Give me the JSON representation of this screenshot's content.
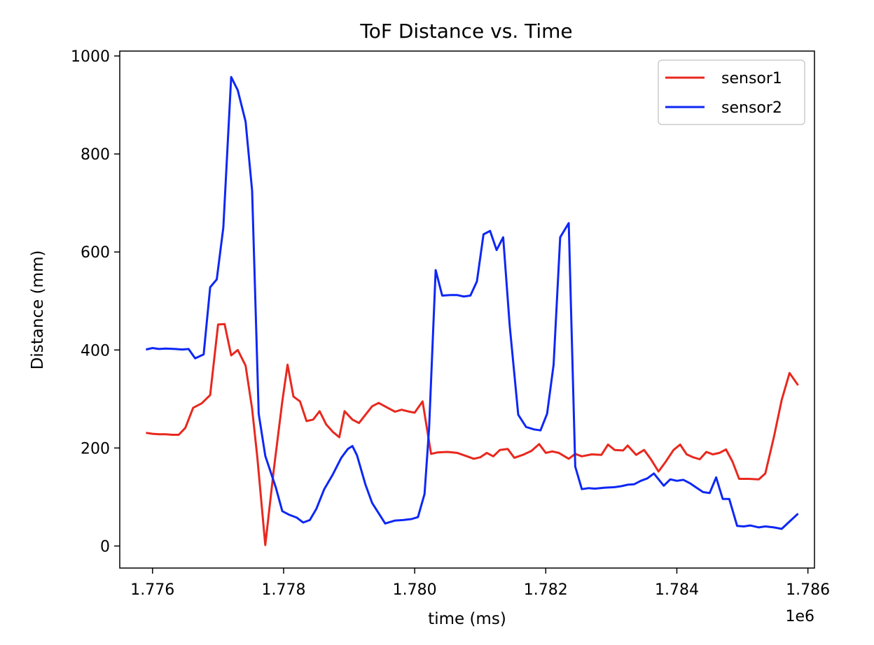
{
  "chart_data": {
    "type": "line",
    "title": "ToF Distance vs. Time",
    "xlabel": "time (ms)",
    "ylabel": "Distance (mm)",
    "x_offset_label": "1e6",
    "xlim": [
      1775.5,
      1786.1
    ],
    "ylim": [
      -45,
      1010
    ],
    "xticks": [
      1776,
      1778,
      1780,
      1782,
      1784,
      1786
    ],
    "xtick_labels": [
      "1.776",
      "1.778",
      "1.780",
      "1.782",
      "1.784",
      "1.786"
    ],
    "yticks": [
      0,
      200,
      400,
      600,
      800,
      1000
    ],
    "ytick_labels": [
      "0",
      "200",
      "400",
      "600",
      "800",
      "1000"
    ],
    "grid": false,
    "legend_position": "top-right",
    "series": [
      {
        "name": "sensor1",
        "color": "#e8281e",
        "points": [
          [
            1775.9,
            231
          ],
          [
            1776.0,
            229
          ],
          [
            1776.1,
            228
          ],
          [
            1776.2,
            228
          ],
          [
            1776.3,
            227
          ],
          [
            1776.4,
            227
          ],
          [
            1776.5,
            241
          ],
          [
            1776.62,
            282
          ],
          [
            1776.75,
            291
          ],
          [
            1776.88,
            308
          ],
          [
            1777.0,
            452
          ],
          [
            1777.1,
            453
          ],
          [
            1777.2,
            389
          ],
          [
            1777.3,
            400
          ],
          [
            1777.42,
            368
          ],
          [
            1777.52,
            280
          ],
          [
            1777.6,
            180
          ],
          [
            1777.72,
            2
          ],
          [
            1777.85,
            155
          ],
          [
            1777.98,
            295
          ],
          [
            1778.06,
            370
          ],
          [
            1778.15,
            305
          ],
          [
            1778.25,
            295
          ],
          [
            1778.35,
            255
          ],
          [
            1778.45,
            258
          ],
          [
            1778.55,
            275
          ],
          [
            1778.65,
            248
          ],
          [
            1778.75,
            233
          ],
          [
            1778.85,
            222
          ],
          [
            1778.93,
            275
          ],
          [
            1779.05,
            258
          ],
          [
            1779.15,
            251
          ],
          [
            1779.25,
            268
          ],
          [
            1779.35,
            285
          ],
          [
            1779.45,
            292
          ],
          [
            1779.6,
            281
          ],
          [
            1779.7,
            274
          ],
          [
            1779.8,
            278
          ],
          [
            1779.92,
            274
          ],
          [
            1780.0,
            272
          ],
          [
            1780.12,
            295
          ],
          [
            1780.25,
            188
          ],
          [
            1780.35,
            191
          ],
          [
            1780.5,
            192
          ],
          [
            1780.65,
            190
          ],
          [
            1780.8,
            183
          ],
          [
            1780.9,
            178
          ],
          [
            1781.0,
            181
          ],
          [
            1781.1,
            190
          ],
          [
            1781.2,
            183
          ],
          [
            1781.3,
            196
          ],
          [
            1781.42,
            198
          ],
          [
            1781.52,
            180
          ],
          [
            1781.65,
            186
          ],
          [
            1781.78,
            194
          ],
          [
            1781.9,
            208
          ],
          [
            1782.0,
            190
          ],
          [
            1782.1,
            193
          ],
          [
            1782.2,
            190
          ],
          [
            1782.35,
            178
          ],
          [
            1782.45,
            188
          ],
          [
            1782.55,
            183
          ],
          [
            1782.7,
            187
          ],
          [
            1782.85,
            186
          ],
          [
            1782.95,
            207
          ],
          [
            1783.05,
            196
          ],
          [
            1783.18,
            195
          ],
          [
            1783.25,
            205
          ],
          [
            1783.38,
            186
          ],
          [
            1783.5,
            196
          ],
          [
            1783.6,
            178
          ],
          [
            1783.72,
            152
          ],
          [
            1783.82,
            170
          ],
          [
            1783.95,
            196
          ],
          [
            1784.05,
            207
          ],
          [
            1784.15,
            187
          ],
          [
            1784.25,
            181
          ],
          [
            1784.35,
            177
          ],
          [
            1784.45,
            192
          ],
          [
            1784.55,
            187
          ],
          [
            1784.65,
            190
          ],
          [
            1784.75,
            197
          ],
          [
            1784.85,
            172
          ],
          [
            1784.95,
            137
          ],
          [
            1785.1,
            137
          ],
          [
            1785.25,
            136
          ],
          [
            1785.35,
            148
          ],
          [
            1785.48,
            222
          ],
          [
            1785.6,
            298
          ],
          [
            1785.72,
            353
          ],
          [
            1785.85,
            328
          ]
        ]
      },
      {
        "name": "sensor2",
        "color": "#0d27f5",
        "points": [
          [
            1775.9,
            401
          ],
          [
            1776.0,
            404
          ],
          [
            1776.1,
            402
          ],
          [
            1776.2,
            403
          ],
          [
            1776.35,
            402
          ],
          [
            1776.45,
            401
          ],
          [
            1776.55,
            402
          ],
          [
            1776.65,
            383
          ],
          [
            1776.78,
            391
          ],
          [
            1776.88,
            528
          ],
          [
            1776.98,
            544
          ],
          [
            1777.08,
            650
          ],
          [
            1777.2,
            957
          ],
          [
            1777.3,
            930
          ],
          [
            1777.42,
            866
          ],
          [
            1777.52,
            725
          ],
          [
            1777.62,
            270
          ],
          [
            1777.72,
            184
          ],
          [
            1777.88,
            120
          ],
          [
            1777.98,
            71
          ],
          [
            1778.08,
            64
          ],
          [
            1778.2,
            58
          ],
          [
            1778.3,
            48
          ],
          [
            1778.4,
            53
          ],
          [
            1778.5,
            76
          ],
          [
            1778.62,
            116
          ],
          [
            1778.75,
            146
          ],
          [
            1778.88,
            180
          ],
          [
            1778.98,
            198
          ],
          [
            1779.05,
            204
          ],
          [
            1779.12,
            185
          ],
          [
            1779.25,
            125
          ],
          [
            1779.35,
            88
          ],
          [
            1779.55,
            46
          ],
          [
            1779.7,
            52
          ],
          [
            1779.82,
            53
          ],
          [
            1779.95,
            55
          ],
          [
            1780.05,
            59
          ],
          [
            1780.15,
            106
          ],
          [
            1780.22,
            240
          ],
          [
            1780.32,
            563
          ],
          [
            1780.42,
            511
          ],
          [
            1780.55,
            512
          ],
          [
            1780.65,
            512
          ],
          [
            1780.75,
            509
          ],
          [
            1780.85,
            511
          ],
          [
            1780.95,
            540
          ],
          [
            1781.05,
            636
          ],
          [
            1781.15,
            643
          ],
          [
            1781.25,
            604
          ],
          [
            1781.35,
            630
          ],
          [
            1781.45,
            450
          ],
          [
            1781.58,
            268
          ],
          [
            1781.7,
            243
          ],
          [
            1781.82,
            238
          ],
          [
            1781.92,
            236
          ],
          [
            1782.02,
            270
          ],
          [
            1782.12,
            370
          ],
          [
            1782.22,
            630
          ],
          [
            1782.35,
            659
          ],
          [
            1782.45,
            162
          ],
          [
            1782.55,
            116
          ],
          [
            1782.65,
            118
          ],
          [
            1782.75,
            117
          ],
          [
            1782.9,
            119
          ],
          [
            1783.05,
            120
          ],
          [
            1783.15,
            122
          ],
          [
            1783.25,
            125
          ],
          [
            1783.35,
            126
          ],
          [
            1783.45,
            133
          ],
          [
            1783.55,
            138
          ],
          [
            1783.65,
            148
          ],
          [
            1783.8,
            123
          ],
          [
            1783.9,
            136
          ],
          [
            1784.0,
            133
          ],
          [
            1784.1,
            135
          ],
          [
            1784.2,
            128
          ],
          [
            1784.3,
            119
          ],
          [
            1784.4,
            110
          ],
          [
            1784.5,
            108
          ],
          [
            1784.6,
            140
          ],
          [
            1784.7,
            96
          ],
          [
            1784.8,
            96
          ],
          [
            1784.92,
            41
          ],
          [
            1785.02,
            40
          ],
          [
            1785.12,
            42
          ],
          [
            1785.25,
            38
          ],
          [
            1785.35,
            40
          ],
          [
            1785.48,
            38
          ],
          [
            1785.6,
            35
          ],
          [
            1785.72,
            50
          ],
          [
            1785.85,
            66
          ]
        ]
      }
    ]
  }
}
